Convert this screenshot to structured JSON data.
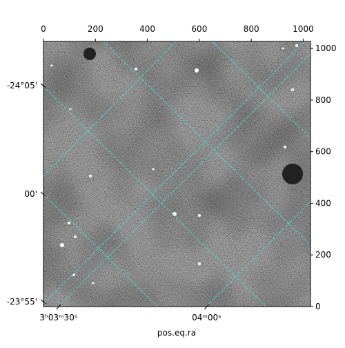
{
  "chart_data": {
    "type": "image",
    "xlabel": "pos.eq.ra",
    "xlim": [
      0,
      1028
    ],
    "ylim": [
      0,
      1027
    ],
    "xticks": [
      0,
      200,
      400,
      600,
      800,
      1000
    ],
    "yticks": [
      0,
      200,
      400,
      600,
      800,
      1000
    ],
    "world_yticks": [
      {
        "value": 856,
        "label": "-24°05'"
      },
      {
        "value": 436,
        "label": "00'"
      },
      {
        "value": 19,
        "label": "-23°55'"
      }
    ],
    "world_xticks": [
      {
        "value": 58,
        "label": "3ʰ03ᵐ30ˢ"
      },
      {
        "value": 628,
        "label": "04ᵐ00ˢ"
      }
    ],
    "grid_color": "#40e0d0",
    "colormap": "gray"
  }
}
